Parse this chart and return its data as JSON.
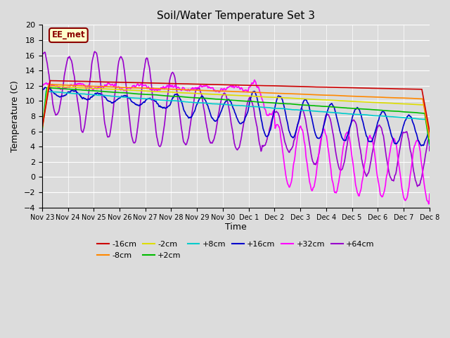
{
  "title": "Soil/Water Temperature Set 3",
  "xlabel": "Time",
  "ylabel": "Temperature (C)",
  "ylim": [
    -4,
    20
  ],
  "yticks": [
    -4,
    -2,
    0,
    2,
    4,
    6,
    8,
    10,
    12,
    14,
    16,
    18,
    20
  ],
  "plot_bg": "#dcdcdc",
  "fig_bg": "#dcdcdc",
  "annotation": "EE_met",
  "series": {
    "-16cm": {
      "color": "#cc0000",
      "lw": 1.2
    },
    "-8cm": {
      "color": "#ff8800",
      "lw": 1.2
    },
    "-2cm": {
      "color": "#dddd00",
      "lw": 1.2
    },
    "+2cm": {
      "color": "#00bb00",
      "lw": 1.2
    },
    "+8cm": {
      "color": "#00cccc",
      "lw": 1.2
    },
    "+16cm": {
      "color": "#0000cc",
      "lw": 1.2
    },
    "+32cm": {
      "color": "#ff00ff",
      "lw": 1.2
    },
    "+64cm": {
      "color": "#9900cc",
      "lw": 1.2
    }
  },
  "tick_labels": [
    "Nov 23",
    "Nov 24",
    "Nov 25",
    "Nov 26",
    "Nov 27",
    "Nov 28",
    "Nov 29",
    "Nov 30",
    "Dec 1",
    "Dec 2",
    "Dec 3",
    "Dec 4",
    "Dec 5",
    "Dec 6",
    "Dec 7",
    "Dec 8"
  ]
}
